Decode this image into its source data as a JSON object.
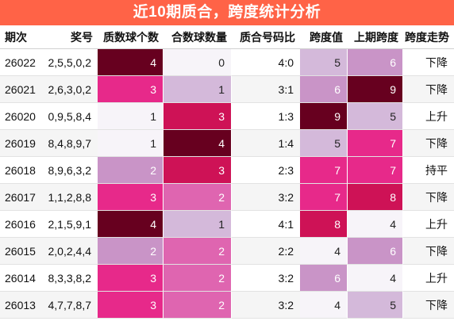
{
  "title": "近10期质合，跨度统计分析",
  "headers": [
    "期次",
    "奖号",
    "质数球个数",
    "合数球数量",
    "质合号码比",
    "跨度值",
    "上期跨度",
    "跨度走势"
  ],
  "rows": [
    {
      "issue": "26022",
      "numbers": "2,5,5,0,2",
      "prime": "4",
      "composite": "0",
      "ratio": "4:0",
      "span": "5",
      "prev_span": "6",
      "trend": "下降"
    },
    {
      "issue": "26021",
      "numbers": "2,6,3,0,2",
      "prime": "3",
      "composite": "1",
      "ratio": "3:1",
      "span": "6",
      "prev_span": "9",
      "trend": "下降"
    },
    {
      "issue": "26020",
      "numbers": "0,9,5,8,4",
      "prime": "1",
      "composite": "3",
      "ratio": "1:3",
      "span": "9",
      "prev_span": "5",
      "trend": "上升"
    },
    {
      "issue": "26019",
      "numbers": "8,4,8,9,7",
      "prime": "1",
      "composite": "4",
      "ratio": "1:4",
      "span": "5",
      "prev_span": "7",
      "trend": "下降"
    },
    {
      "issue": "26018",
      "numbers": "8,9,6,3,2",
      "prime": "2",
      "composite": "3",
      "ratio": "2:3",
      "span": "7",
      "prev_span": "7",
      "trend": "持平"
    },
    {
      "issue": "26017",
      "numbers": "1,1,2,8,8",
      "prime": "3",
      "composite": "2",
      "ratio": "3:2",
      "span": "7",
      "prev_span": "8",
      "trend": "下降"
    },
    {
      "issue": "26016",
      "numbers": "2,1,5,9,1",
      "prime": "4",
      "composite": "1",
      "ratio": "4:1",
      "span": "8",
      "prev_span": "4",
      "trend": "上升"
    },
    {
      "issue": "26015",
      "numbers": "2,0,2,4,4",
      "prime": "2",
      "composite": "2",
      "ratio": "2:2",
      "span": "4",
      "prev_span": "6",
      "trend": "下降"
    },
    {
      "issue": "26014",
      "numbers": "8,3,3,8,2",
      "prime": "3",
      "composite": "2",
      "ratio": "3:2",
      "span": "6",
      "prev_span": "4",
      "trend": "上升"
    },
    {
      "issue": "26013",
      "numbers": "4,7,7,8,7",
      "prime": "3",
      "composite": "2",
      "ratio": "3:2",
      "span": "4",
      "prev_span": "5",
      "trend": "下降"
    }
  ],
  "heat_colors": {
    "prime": {
      "1": "#f7f4f9",
      "2": "#c994c7",
      "3": "#e7298a",
      "4": "#67001f"
    },
    "composite": {
      "0": "#f7f4f9",
      "1": "#d4b9da",
      "2": "#df65b0",
      "3": "#ce1256",
      "4": "#67001f"
    },
    "span": {
      "4": "#f7f4f9",
      "5": "#d4b9da",
      "6": "#c994c7",
      "7": "#e7298a",
      "8": "#ce1256",
      "9": "#67001f"
    }
  },
  "light_text_values": {
    "prime": [
      "1"
    ],
    "composite": [
      "0",
      "1"
    ],
    "span": [
      "4",
      "5"
    ]
  }
}
